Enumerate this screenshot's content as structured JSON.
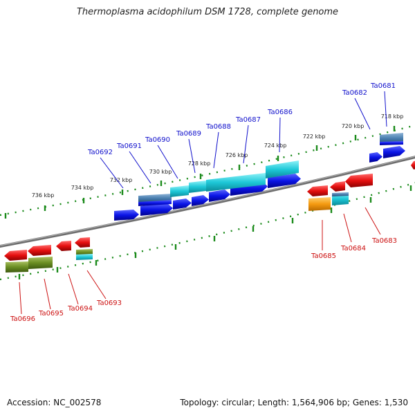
{
  "title": "Thermoplasma acidophilum DSM 1728, complete genome",
  "footer": {
    "accession": "Accession: NC_002578",
    "stats": "Topology: circular; Length: 1,564,906 bp; Genes: 1,530"
  },
  "scale_labels": [
    "718 kbp",
    "720 kbp",
    "722 kbp",
    "724 kbp",
    "726 kbp",
    "728 kbp",
    "730 kbp",
    "732 kbp",
    "734 kbp",
    "736 kbp"
  ],
  "labels_top": [
    "Ta0681",
    "Ta0682",
    "Ta0686",
    "Ta0687",
    "Ta0688",
    "Ta0689",
    "Ta0690",
    "Ta0691",
    "Ta0692"
  ],
  "labels_bottom": [
    "Ta0683",
    "Ta0684",
    "Ta0685",
    "Ta0693",
    "Ta0694",
    "Ta0695",
    "Ta0696"
  ],
  "colors": {
    "forward_gene": "#0a14e6",
    "reverse_gene": "#e61010",
    "cyan_track": "#1ec8d8",
    "steel_track": "#4a7fb0",
    "orange_track": "#f59a10",
    "olive_track": "#6b8e23",
    "backbone": "#7a7a7a",
    "tick": "#1a8a1a",
    "top_label": "#1010cc",
    "bottom_label": "#cc1010"
  }
}
